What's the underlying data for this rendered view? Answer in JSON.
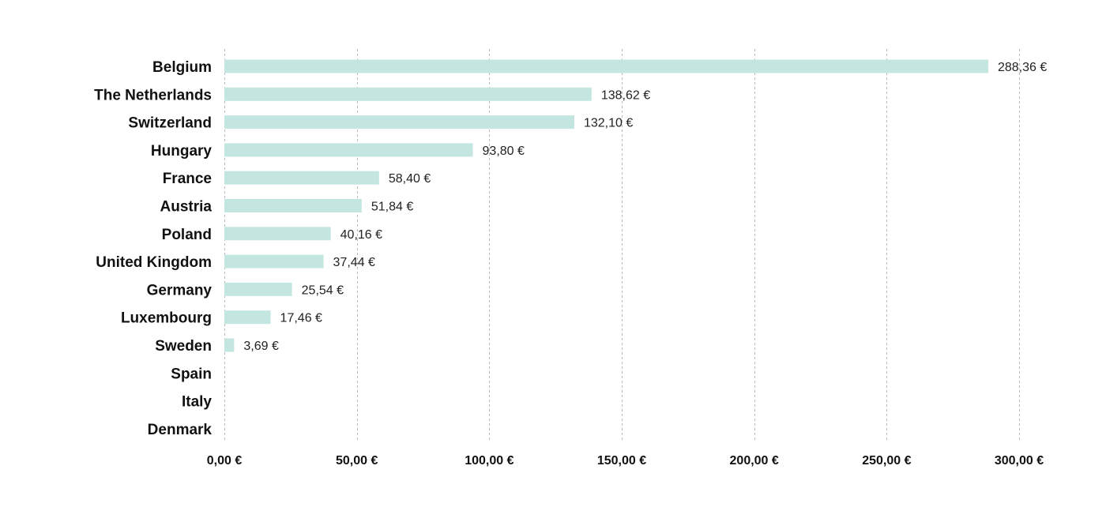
{
  "chart_data": {
    "type": "bar",
    "orientation": "horizontal",
    "title": "",
    "xlabel": "",
    "ylabel": "",
    "categories": [
      "Belgium",
      "The Netherlands",
      "Switzerland",
      "Hungary",
      "France",
      "Austria",
      "Poland",
      "United Kingdom",
      "Germany",
      "Luxembourg",
      "Sweden",
      "Spain",
      "Italy",
      "Denmark"
    ],
    "values": [
      288.36,
      138.62,
      132.1,
      93.8,
      58.4,
      51.84,
      40.16,
      37.44,
      25.54,
      17.46,
      3.69,
      null,
      null,
      null
    ],
    "value_labels": [
      "288,36 €",
      "138,62 €",
      "132,10 €",
      "93,80 €",
      "58,40 €",
      "51,84 €",
      "40,16 €",
      "37,44 €",
      "25,54 €",
      "17,46 €",
      "3,69 €",
      "",
      "",
      ""
    ],
    "xlim": [
      0,
      300
    ],
    "x_ticks": [
      0,
      50,
      100,
      150,
      200,
      250,
      300
    ],
    "x_tick_labels": [
      "0,00 €",
      "50,00 €",
      "100,00 €",
      "150,00 €",
      "200,00 €",
      "250,00 €",
      "300,00 €"
    ],
    "grid": "vertical-dashed",
    "legend": "none",
    "bar_color": "#c4e6e1"
  }
}
